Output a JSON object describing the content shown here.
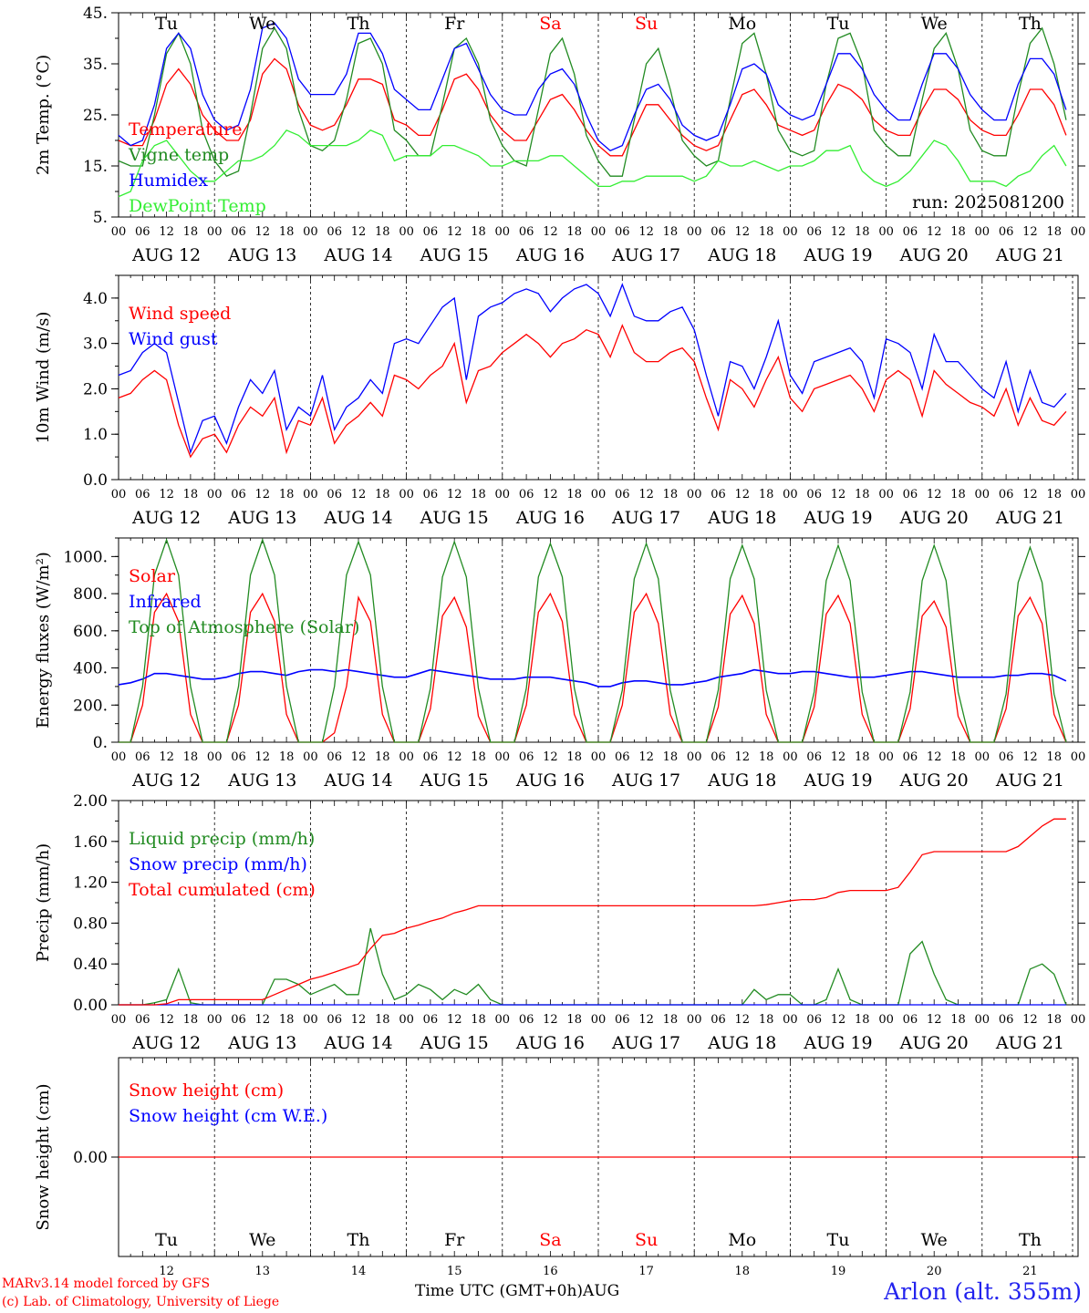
{
  "credits": {
    "line1": "MARv3.14 model forced by GFS",
    "line2": "(c) Lab. of Climatology, University of Liege"
  },
  "station": "Arlon (alt. 355m)",
  "xlabel": "Time UTC (GMT+0h)AUG",
  "run_label": "run: 2025081200",
  "day_names": [
    "Tu",
    "We",
    "Th",
    "Fr",
    "Sa",
    "Su",
    "Mo",
    "Tu",
    "We",
    "Th"
  ],
  "weekend_days": [
    4,
    5
  ],
  "day_numbers": [
    "12",
    "13",
    "14",
    "15",
    "16",
    "17",
    "18",
    "19",
    "20",
    "21"
  ],
  "date_labels": [
    "AUG 12",
    "AUG 13",
    "AUG 14",
    "AUG 15",
    "AUG 16",
    "AUG 17",
    "AUG 18",
    "AUG 19",
    "AUG 20",
    "AUG 21"
  ],
  "hour_ticks": [
    "00",
    "06",
    "12",
    "18"
  ],
  "colors": {
    "red": "#ff0000",
    "blue": "#0000ff",
    "darkgreen": "#228b22",
    "lightgreen": "#33ee33",
    "stationblue": "#2222ee"
  },
  "chart_data": [
    {
      "type": "line",
      "ylabel": "2m Temp. (°C)",
      "yticks": [
        "5.",
        "15.",
        "25.",
        "35.",
        "45."
      ],
      "ylim": [
        5,
        45
      ],
      "x": "hours from AUG 12 00 UTC, 3-hourly",
      "series": [
        {
          "name": "Temperature",
          "color": "#ff0000",
          "values": [
            20,
            19,
            19,
            24,
            31,
            34,
            31,
            25,
            22,
            20,
            20,
            24,
            33,
            36,
            34,
            27,
            23,
            22,
            23,
            27,
            32,
            32,
            31,
            24,
            23,
            21,
            21,
            26,
            32,
            33,
            30,
            25,
            22,
            20,
            20,
            24,
            28,
            29,
            26,
            22,
            19,
            17,
            17,
            22,
            27,
            27,
            24,
            21,
            19,
            18,
            19,
            24,
            29,
            30,
            27,
            23,
            22,
            21,
            22,
            27,
            31,
            30,
            28,
            24,
            22,
            21,
            21,
            26,
            30,
            30,
            28,
            24,
            22,
            21,
            21,
            25,
            30,
            30,
            27,
            21
          ]
        },
        {
          "name": "Vigne temp",
          "color": "#228b22",
          "values": [
            16,
            15,
            15,
            25,
            37,
            41,
            35,
            22,
            16,
            13,
            14,
            25,
            38,
            42,
            38,
            26,
            19,
            18,
            20,
            28,
            39,
            40,
            35,
            22,
            20,
            17,
            17,
            27,
            38,
            40,
            35,
            24,
            19,
            16,
            15,
            26,
            37,
            40,
            33,
            21,
            16,
            13,
            13,
            24,
            35,
            38,
            30,
            20,
            17,
            15,
            16,
            28,
            39,
            41,
            33,
            22,
            18,
            17,
            18,
            31,
            40,
            41,
            35,
            22,
            19,
            17,
            17,
            28,
            38,
            41,
            34,
            22,
            18,
            17,
            17,
            29,
            39,
            42,
            35,
            24
          ]
        },
        {
          "name": "Humidex",
          "color": "#0000ff",
          "values": [
            21,
            19,
            20,
            27,
            38,
            41,
            38,
            29,
            24,
            22,
            23,
            30,
            42,
            43,
            40,
            32,
            29,
            29,
            29,
            33,
            41,
            41,
            37,
            30,
            28,
            26,
            26,
            32,
            38,
            39,
            34,
            29,
            26,
            25,
            25,
            30,
            33,
            34,
            31,
            25,
            20,
            18,
            19,
            25,
            30,
            31,
            28,
            23,
            21,
            20,
            21,
            27,
            34,
            35,
            33,
            27,
            25,
            24,
            25,
            31,
            37,
            37,
            34,
            29,
            26,
            24,
            24,
            31,
            37,
            37,
            34,
            29,
            26,
            24,
            24,
            31,
            36,
            36,
            33,
            26
          ]
        },
        {
          "name": "DewPoint Temp",
          "color": "#33ee33",
          "values": [
            9,
            10,
            16,
            19,
            20,
            17,
            14,
            12,
            12,
            14,
            16,
            16,
            17,
            19,
            22,
            21,
            19,
            19,
            19,
            19,
            20,
            22,
            21,
            16,
            17,
            17,
            17,
            19,
            19,
            18,
            17,
            15,
            15,
            16,
            16,
            16,
            17,
            17,
            15,
            13,
            11,
            11,
            12,
            12,
            13,
            13,
            13,
            13,
            12,
            13,
            16,
            15,
            15,
            16,
            15,
            14,
            15,
            15,
            16,
            18,
            18,
            19,
            14,
            12,
            11,
            12,
            14,
            17,
            20,
            19,
            16,
            12,
            12,
            12,
            11,
            13,
            14,
            17,
            19,
            15
          ]
        }
      ]
    },
    {
      "type": "line",
      "ylabel": "10m Wind (m/s)",
      "yticks": [
        "0.0",
        "1.0",
        "2.0",
        "3.0",
        "4.0"
      ],
      "ylim": [
        0,
        4.5
      ],
      "x": "hours from AUG 12 00 UTC, 3-hourly",
      "series": [
        {
          "name": "Wind speed",
          "color": "#ff0000",
          "values": [
            1.8,
            1.9,
            2.2,
            2.4,
            2.2,
            1.2,
            0.5,
            0.9,
            1.0,
            0.6,
            1.2,
            1.6,
            1.4,
            1.8,
            0.6,
            1.3,
            1.2,
            1.8,
            0.8,
            1.2,
            1.4,
            1.7,
            1.4,
            2.3,
            2.2,
            2.0,
            2.3,
            2.5,
            3.0,
            1.7,
            2.4,
            2.5,
            2.8,
            3.0,
            3.2,
            3.0,
            2.7,
            3.0,
            3.1,
            3.3,
            3.2,
            2.7,
            3.4,
            2.8,
            2.6,
            2.6,
            2.8,
            2.9,
            2.6,
            1.8,
            1.1,
            2.2,
            2.0,
            1.6,
            2.2,
            2.7,
            1.8,
            1.5,
            2.0,
            2.1,
            2.2,
            2.3,
            2.0,
            1.5,
            2.2,
            2.4,
            2.2,
            1.4,
            2.4,
            2.1,
            1.9,
            1.7,
            1.6,
            1.4,
            2.0,
            1.2,
            1.8,
            1.3,
            1.2,
            1.5
          ]
        },
        {
          "name": "Wind gust",
          "color": "#0000ff",
          "values": [
            2.3,
            2.4,
            2.8,
            3.0,
            2.8,
            1.7,
            0.6,
            1.3,
            1.4,
            0.8,
            1.6,
            2.2,
            1.9,
            2.4,
            1.1,
            1.6,
            1.4,
            2.3,
            1.1,
            1.6,
            1.8,
            2.2,
            1.9,
            3.0,
            3.1,
            3.0,
            3.4,
            3.8,
            4.0,
            2.2,
            3.6,
            3.8,
            3.9,
            4.1,
            4.2,
            4.1,
            3.7,
            4.0,
            4.2,
            4.3,
            4.1,
            3.6,
            4.3,
            3.6,
            3.5,
            3.5,
            3.7,
            3.8,
            3.3,
            2.3,
            1.4,
            2.6,
            2.5,
            2.0,
            2.7,
            3.5,
            2.3,
            1.9,
            2.6,
            2.7,
            2.8,
            2.9,
            2.6,
            1.8,
            3.1,
            3.0,
            2.8,
            2.0,
            3.2,
            2.6,
            2.6,
            2.3,
            2.0,
            1.8,
            2.6,
            1.5,
            2.4,
            1.7,
            1.6,
            1.9
          ]
        }
      ]
    },
    {
      "type": "line",
      "ylabel": "Energy fluxes (W/m²)",
      "yticks": [
        "0.",
        "200.",
        "400.",
        "600.",
        "800.",
        "1000."
      ],
      "ylim": [
        0,
        1100
      ],
      "x": "hours from AUG 12 00 UTC, 3-hourly",
      "series": [
        {
          "name": "Solar",
          "color": "#ff0000",
          "values": [
            0,
            0,
            200,
            700,
            800,
            650,
            150,
            0,
            0,
            0,
            200,
            700,
            800,
            650,
            150,
            0,
            0,
            0,
            50,
            300,
            780,
            650,
            150,
            0,
            0,
            0,
            180,
            680,
            780,
            620,
            140,
            0,
            0,
            0,
            200,
            700,
            800,
            650,
            150,
            0,
            0,
            0,
            200,
            700,
            800,
            640,
            150,
            0,
            0,
            0,
            190,
            690,
            790,
            640,
            150,
            0,
            0,
            0,
            190,
            690,
            790,
            640,
            150,
            0,
            0,
            0,
            180,
            680,
            760,
            620,
            140,
            0,
            0,
            0,
            180,
            680,
            780,
            640,
            150,
            0
          ]
        },
        {
          "name": "Infrared",
          "color": "#0000ff",
          "values": [
            310,
            320,
            340,
            370,
            370,
            360,
            350,
            340,
            340,
            350,
            370,
            380,
            380,
            370,
            360,
            380,
            390,
            390,
            380,
            390,
            380,
            370,
            360,
            350,
            350,
            370,
            390,
            380,
            370,
            360,
            350,
            340,
            340,
            340,
            350,
            350,
            350,
            340,
            330,
            320,
            300,
            300,
            320,
            330,
            330,
            320,
            310,
            310,
            320,
            330,
            350,
            360,
            370,
            390,
            380,
            370,
            370,
            380,
            380,
            370,
            360,
            350,
            350,
            350,
            360,
            370,
            380,
            380,
            370,
            360,
            350,
            350,
            350,
            350,
            360,
            360,
            370,
            370,
            360,
            330
          ]
        },
        {
          "name": "Top of Atmosphere (Solar)",
          "color": "#228b22",
          "values": [
            0,
            0,
            300,
            900,
            1090,
            900,
            300,
            0,
            0,
            0,
            300,
            900,
            1090,
            900,
            300,
            0,
            0,
            0,
            300,
            900,
            1080,
            900,
            300,
            0,
            0,
            0,
            290,
            890,
            1080,
            890,
            290,
            0,
            0,
            0,
            290,
            890,
            1070,
            890,
            290,
            0,
            0,
            0,
            280,
            880,
            1070,
            880,
            280,
            0,
            0,
            0,
            280,
            880,
            1060,
            880,
            280,
            0,
            0,
            0,
            270,
            870,
            1060,
            870,
            270,
            0,
            0,
            0,
            270,
            870,
            1060,
            870,
            270,
            0,
            0,
            0,
            260,
            860,
            1050,
            860,
            260,
            0
          ]
        }
      ]
    },
    {
      "type": "line",
      "ylabel": "Precip (mm/h)",
      "yticks": [
        "0.00",
        "0.40",
        "0.80",
        "1.20",
        "1.60",
        "2.00"
      ],
      "ylim": [
        0,
        2.0
      ],
      "x": "hours from AUG 12 00 UTC, 3-hourly",
      "series": [
        {
          "name": "Liquid precip (mm/h)",
          "color": "#228b22",
          "values": [
            0,
            0,
            0,
            0.02,
            0.05,
            0.35,
            0.02,
            0,
            0,
            0,
            0,
            0,
            0,
            0.25,
            0.25,
            0.2,
            0.1,
            0.15,
            0.2,
            0.1,
            0.1,
            0.75,
            0.3,
            0.05,
            0.1,
            0.2,
            0.15,
            0.05,
            0.15,
            0.1,
            0.2,
            0.05,
            0,
            0,
            0,
            0,
            0,
            0,
            0,
            0,
            0,
            0,
            0,
            0,
            0,
            0,
            0,
            0,
            0,
            0,
            0,
            0,
            0,
            0.15,
            0.05,
            0.1,
            0.1,
            0,
            0,
            0.05,
            0.35,
            0.05,
            0,
            0,
            0,
            0,
            0.5,
            0.62,
            0.3,
            0.05,
            0,
            0,
            0,
            0,
            0,
            0,
            0.35,
            0.4,
            0.3,
            0
          ]
        },
        {
          "name": "Snow precip (mm/h)",
          "color": "#0000ff",
          "values": [
            0,
            0,
            0,
            0,
            0,
            0,
            0,
            0,
            0,
            0,
            0,
            0,
            0,
            0,
            0,
            0,
            0,
            0,
            0,
            0,
            0,
            0,
            0,
            0,
            0,
            0,
            0,
            0,
            0,
            0,
            0,
            0,
            0,
            0,
            0,
            0,
            0,
            0,
            0,
            0,
            0,
            0,
            0,
            0,
            0,
            0,
            0,
            0,
            0,
            0,
            0,
            0,
            0,
            0,
            0,
            0,
            0,
            0,
            0,
            0,
            0,
            0,
            0,
            0,
            0,
            0,
            0,
            0,
            0,
            0,
            0,
            0,
            0,
            0,
            0,
            0,
            0,
            0,
            0,
            0
          ]
        },
        {
          "name": "Total cumulated (cm)",
          "color": "#ff0000",
          "values": [
            0,
            0,
            0,
            0,
            0.01,
            0.05,
            0.05,
            0.05,
            0.05,
            0.05,
            0.05,
            0.05,
            0.05,
            0.1,
            0.15,
            0.2,
            0.25,
            0.28,
            0.32,
            0.36,
            0.4,
            0.55,
            0.68,
            0.7,
            0.75,
            0.78,
            0.82,
            0.85,
            0.9,
            0.93,
            0.97,
            0.97,
            0.97,
            0.97,
            0.97,
            0.97,
            0.97,
            0.97,
            0.97,
            0.97,
            0.97,
            0.97,
            0.97,
            0.97,
            0.97,
            0.97,
            0.97,
            0.97,
            0.97,
            0.97,
            0.97,
            0.97,
            0.97,
            0.97,
            0.98,
            1.0,
            1.02,
            1.03,
            1.03,
            1.05,
            1.1,
            1.12,
            1.12,
            1.12,
            1.12,
            1.15,
            1.3,
            1.47,
            1.5,
            1.5,
            1.5,
            1.5,
            1.5,
            1.5,
            1.5,
            1.55,
            1.65,
            1.75,
            1.82,
            1.82
          ]
        }
      ]
    },
    {
      "type": "line",
      "ylabel": "Snow height (cm)",
      "yticks": [
        "0.00"
      ],
      "ylim": [
        -1,
        1
      ],
      "x": "hours from AUG 12 00 UTC, 3-hourly",
      "series": [
        {
          "name": "Snow height (cm)",
          "color": "#ff0000",
          "values": [
            0,
            0
          ]
        },
        {
          "name": "Snow height (cm W.E.)",
          "color": "#0000ff",
          "values": []
        }
      ]
    }
  ]
}
